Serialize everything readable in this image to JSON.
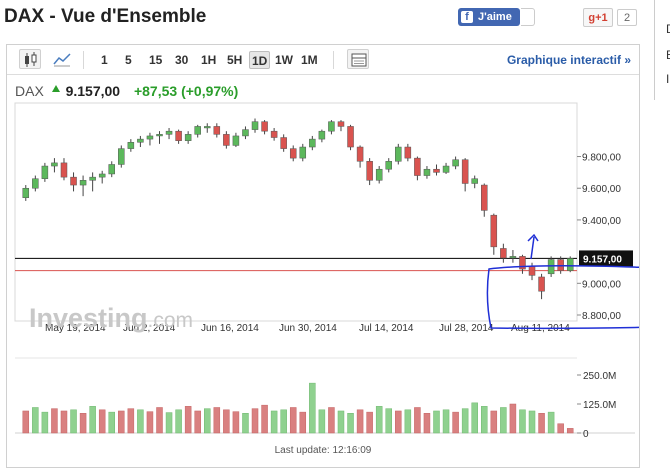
{
  "header": {
    "title": "DAX - Vue d'Ensemble",
    "fb_label": "J'aime",
    "gplus_label": "g+1",
    "gplus_count": "2",
    "side_letters": [
      "D",
      "E",
      "I"
    ]
  },
  "toolbar": {
    "icons": [
      "candlestick-icon",
      "area-chart-icon",
      "table-icon"
    ],
    "timeframes": [
      "1",
      "5",
      "15",
      "30",
      "1H",
      "5H",
      "1D",
      "1W",
      "1M"
    ],
    "active_timeframe": "1D",
    "interactive_link": "Graphique interactif »"
  },
  "quote": {
    "symbol": "DAX",
    "price": "9.157,00",
    "change": "+87,53 (+0,97%)",
    "change_color": "#2a9d2a"
  },
  "watermark": {
    "brand": "Investing",
    "domain": ".com"
  },
  "chart_data": {
    "type": "candlestick",
    "x_tick_labels": [
      "May 19, 2014",
      "Jun 2, 2014",
      "Jun 16, 2014",
      "Jun 30, 2014",
      "Jul 14, 2014",
      "Jul 28, 2014",
      "Aug 11, 2014"
    ],
    "y_tick_labels": [
      "9.800,00",
      "9.600,00",
      "9.400,00",
      "9.000,00",
      "8.800,00"
    ],
    "y_range": [
      8800,
      10100
    ],
    "current_price_label": "9.157,00",
    "current_price": 9157,
    "reference_line": 9080,
    "up_color": "#5cb85c",
    "down_color": "#d9534f",
    "candles": [
      [
        9540,
        9600,
        9520,
        9620
      ],
      [
        9600,
        9660,
        9580,
        9680
      ],
      [
        9660,
        9740,
        9640,
        9760
      ],
      [
        9740,
        9760,
        9700,
        9790
      ],
      [
        9760,
        9670,
        9650,
        9790
      ],
      [
        9670,
        9620,
        9580,
        9700
      ],
      [
        9620,
        9650,
        9550,
        9680
      ],
      [
        9650,
        9670,
        9580,
        9700
      ],
      [
        9670,
        9690,
        9630,
        9710
      ],
      [
        9690,
        9750,
        9670,
        9770
      ],
      [
        9750,
        9850,
        9730,
        9870
      ],
      [
        9850,
        9890,
        9830,
        9910
      ],
      [
        9890,
        9910,
        9860,
        9930
      ],
      [
        9910,
        9930,
        9870,
        9950
      ],
      [
        9930,
        9940,
        9880,
        9960
      ],
      [
        9940,
        9960,
        9910,
        9980
      ],
      [
        9960,
        9900,
        9880,
        9970
      ],
      [
        9900,
        9940,
        9880,
        9960
      ],
      [
        9940,
        9990,
        9920,
        10000
      ],
      [
        9990,
        9990,
        9950,
        10010
      ],
      [
        9990,
        9940,
        9920,
        10010
      ],
      [
        9940,
        9870,
        9850,
        9960
      ],
      [
        9870,
        9930,
        9860,
        9950
      ],
      [
        9930,
        9970,
        9910,
        9990
      ],
      [
        9970,
        10020,
        9950,
        10040
      ],
      [
        10020,
        9960,
        9940,
        10030
      ],
      [
        9960,
        9920,
        9900,
        9980
      ],
      [
        9920,
        9850,
        9830,
        9940
      ],
      [
        9850,
        9790,
        9770,
        9870
      ],
      [
        9790,
        9860,
        9770,
        9880
      ],
      [
        9860,
        9910,
        9840,
        9930
      ],
      [
        9910,
        9960,
        9890,
        9970
      ],
      [
        9960,
        10020,
        9940,
        10030
      ],
      [
        10020,
        9990,
        9960,
        10030
      ],
      [
        9990,
        9860,
        9840,
        10000
      ],
      [
        9860,
        9770,
        9730,
        9870
      ],
      [
        9770,
        9650,
        9620,
        9790
      ],
      [
        9650,
        9720,
        9630,
        9740
      ],
      [
        9720,
        9770,
        9700,
        9790
      ],
      [
        9770,
        9860,
        9750,
        9880
      ],
      [
        9860,
        9790,
        9770,
        9880
      ],
      [
        9790,
        9680,
        9650,
        9800
      ],
      [
        9680,
        9720,
        9660,
        9740
      ],
      [
        9720,
        9700,
        9680,
        9750
      ],
      [
        9700,
        9740,
        9690,
        9760
      ],
      [
        9740,
        9780,
        9720,
        9800
      ],
      [
        9780,
        9630,
        9580,
        9790
      ],
      [
        9630,
        9660,
        9600,
        9680
      ],
      [
        9620,
        9460,
        9420,
        9630
      ],
      [
        9430,
        9230,
        9180,
        9440
      ],
      [
        9220,
        9160,
        9130,
        9250
      ],
      [
        9160,
        9170,
        9130,
        9210
      ],
      [
        9170,
        9090,
        9060,
        9180
      ],
      [
        9110,
        9050,
        9020,
        9130
      ],
      [
        9040,
        8950,
        8900,
        9060
      ],
      [
        9060,
        9150,
        9040,
        9170
      ],
      [
        9150,
        9080,
        9060,
        9170
      ],
      [
        9080,
        9157,
        9070,
        9170
      ]
    ],
    "volume_axis_labels": [
      "250.0M",
      "125.0M",
      "0"
    ],
    "volume_max": 250,
    "volumes": [
      [
        95,
        0
      ],
      [
        110,
        1
      ],
      [
        90,
        1
      ],
      [
        105,
        0
      ],
      [
        95,
        0
      ],
      [
        100,
        1
      ],
      [
        85,
        0
      ],
      [
        115,
        1
      ],
      [
        100,
        0
      ],
      [
        90,
        1
      ],
      [
        95,
        0
      ],
      [
        105,
        0
      ],
      [
        100,
        1
      ],
      [
        92,
        0
      ],
      [
        110,
        0
      ],
      [
        88,
        1
      ],
      [
        100,
        1
      ],
      [
        115,
        0
      ],
      [
        95,
        0
      ],
      [
        105,
        1
      ],
      [
        110,
        0
      ],
      [
        100,
        0
      ],
      [
        92,
        0
      ],
      [
        85,
        1
      ],
      [
        105,
        0
      ],
      [
        120,
        0
      ],
      [
        95,
        1
      ],
      [
        100,
        1
      ],
      [
        110,
        0
      ],
      [
        90,
        0
      ],
      [
        215,
        1
      ],
      [
        100,
        1
      ],
      [
        110,
        0
      ],
      [
        95,
        1
      ],
      [
        85,
        1
      ],
      [
        100,
        0
      ],
      [
        90,
        0
      ],
      [
        115,
        1
      ],
      [
        105,
        1
      ],
      [
        95,
        0
      ],
      [
        100,
        1
      ],
      [
        110,
        0
      ],
      [
        85,
        0
      ],
      [
        95,
        1
      ],
      [
        100,
        1
      ],
      [
        90,
        0
      ],
      [
        105,
        1
      ],
      [
        130,
        1
      ],
      [
        115,
        1
      ],
      [
        95,
        0
      ],
      [
        110,
        1
      ],
      [
        125,
        0
      ],
      [
        100,
        1
      ],
      [
        95,
        1
      ],
      [
        85,
        0
      ],
      [
        90,
        1
      ],
      [
        40,
        0
      ],
      [
        20,
        0
      ]
    ]
  },
  "footer": {
    "last_update": "Last update: 12:16:09"
  }
}
